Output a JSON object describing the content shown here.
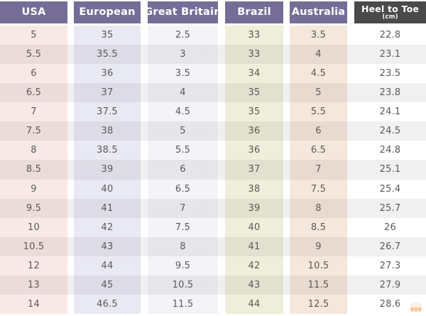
{
  "chart_data": {
    "type": "table",
    "columns": [
      {
        "id": "usa",
        "label": "USA"
      },
      {
        "id": "european",
        "label": "European"
      },
      {
        "id": "great_britain",
        "label": "Great Britain"
      },
      {
        "id": "brazil",
        "label": "Brazil"
      },
      {
        "id": "australia",
        "label": "Australia"
      },
      {
        "id": "heel_to_toe",
        "label": "Heel to Toe",
        "sublabel": "(cm)"
      }
    ],
    "rows": [
      [
        "5",
        "35",
        "2.5",
        "33",
        "3.5",
        "22.8"
      ],
      [
        "5.5",
        "35.5",
        "3",
        "33",
        "4",
        "23.1"
      ],
      [
        "6",
        "36",
        "3.5",
        "34",
        "4.5",
        "23.5"
      ],
      [
        "6.5",
        "37",
        "4",
        "35",
        "5",
        "23.8"
      ],
      [
        "7",
        "37.5",
        "4.5",
        "35",
        "5.5",
        "24.1"
      ],
      [
        "7.5",
        "38",
        "5",
        "36",
        "6",
        "24.5"
      ],
      [
        "8",
        "38.5",
        "5.5",
        "36",
        "6.5",
        "24.8"
      ],
      [
        "8.5",
        "39",
        "6",
        "37",
        "7",
        "25.1"
      ],
      [
        "9",
        "40",
        "6.5",
        "38",
        "7.5",
        "25.4"
      ],
      [
        "9.5",
        "41",
        "7",
        "39",
        "8",
        "25.7"
      ],
      [
        "10",
        "42",
        "7.5",
        "40",
        "8.5",
        "26"
      ],
      [
        "10.5",
        "43",
        "8",
        "41",
        "9",
        "26.7"
      ],
      [
        "12",
        "44",
        "9.5",
        "42",
        "10.5",
        "27.3"
      ],
      [
        "13",
        "45",
        "10.5",
        "43",
        "11.5",
        "27.9"
      ],
      [
        "14",
        "46.5",
        "11.5",
        "44",
        "12.5",
        "28.6"
      ]
    ]
  },
  "colors": {
    "header_bg": "#756d98",
    "header_text": "#ffffff",
    "heel_header_bg": "#4a4a4a",
    "body_text": "#5a5a5a",
    "stripe": "rgba(95,85,95,0.09)",
    "column_tints": {
      "usa": "#f9e9e6",
      "european": "#e9e9f4",
      "great_britain": "#f4f4f8",
      "brazil": "#efeeda",
      "australia": "#f5e7db",
      "heel_to_toe": "#ffffff"
    },
    "watermark_orange": "#e89440",
    "watermark_cream": "#f5e0c0"
  }
}
